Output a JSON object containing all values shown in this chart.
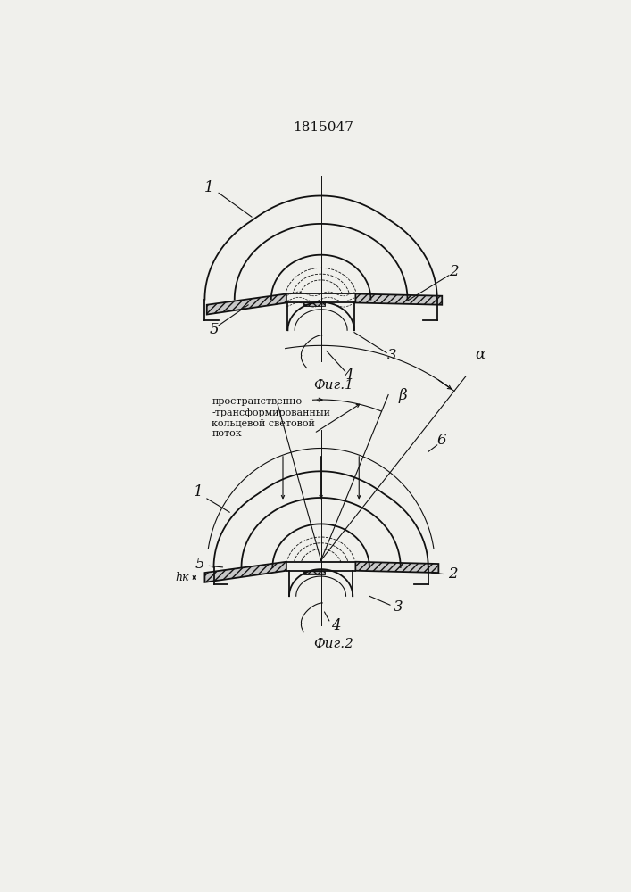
{
  "patent_number": "1815047",
  "fig1_caption": "Фиг.1",
  "fig2_caption": "Фиг.2",
  "annotation_text": "пространственно-\n-трансформированный\nкольцевой световой\nпоток",
  "label_hk": "hк",
  "bg_color": "#f0f0ec",
  "line_color": "#111111"
}
